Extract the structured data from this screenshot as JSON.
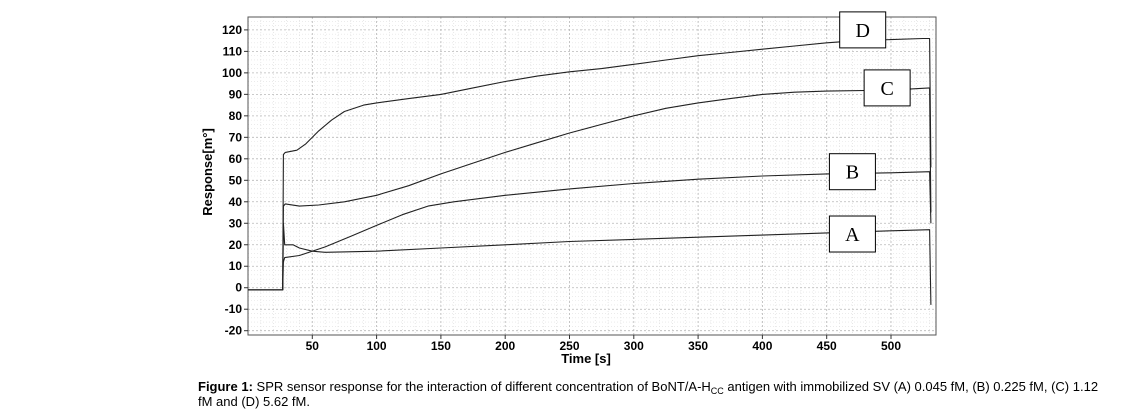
{
  "chart_data": {
    "type": "line",
    "xlabel": "Time [s]",
    "ylabel": "Response[m°]",
    "xlim": [
      0,
      535
    ],
    "ylim": [
      -22,
      126
    ],
    "x_ticks": [
      50,
      100,
      150,
      200,
      250,
      300,
      350,
      400,
      450,
      500
    ],
    "y_ticks": [
      -20,
      -10,
      0,
      10,
      20,
      30,
      40,
      50,
      60,
      70,
      80,
      90,
      100,
      110,
      120
    ],
    "grid": true,
    "series": [
      {
        "name": "A",
        "points": [
          [
            0,
            -1
          ],
          [
            27,
            -1
          ],
          [
            27.5,
            30
          ],
          [
            28.5,
            20
          ],
          [
            35,
            20
          ],
          [
            40,
            18.5
          ],
          [
            50,
            17
          ],
          [
            60,
            16.5
          ],
          [
            100,
            17
          ],
          [
            150,
            18.5
          ],
          [
            200,
            20
          ],
          [
            250,
            21.5
          ],
          [
            300,
            22.5
          ],
          [
            350,
            23.5
          ],
          [
            400,
            24.5
          ],
          [
            450,
            25.5
          ],
          [
            500,
            26.5
          ],
          [
            530,
            27
          ],
          [
            531,
            -8
          ]
        ]
      },
      {
        "name": "B",
        "points": [
          [
            0,
            -1
          ],
          [
            27,
            -1
          ],
          [
            27.5,
            12
          ],
          [
            28.5,
            14
          ],
          [
            40,
            15
          ],
          [
            60,
            19
          ],
          [
            80,
            24
          ],
          [
            100,
            29
          ],
          [
            120,
            34
          ],
          [
            140,
            38
          ],
          [
            160,
            40
          ],
          [
            200,
            43
          ],
          [
            250,
            46
          ],
          [
            300,
            48.5
          ],
          [
            350,
            50.5
          ],
          [
            400,
            52
          ],
          [
            450,
            53
          ],
          [
            500,
            53.5
          ],
          [
            530,
            54
          ],
          [
            531,
            30
          ]
        ]
      },
      {
        "name": "C",
        "points": [
          [
            0,
            -1
          ],
          [
            27,
            -1
          ],
          [
            27.5,
            38
          ],
          [
            29,
            39
          ],
          [
            40,
            38
          ],
          [
            55,
            38.5
          ],
          [
            75,
            40
          ],
          [
            100,
            43
          ],
          [
            125,
            47.5
          ],
          [
            150,
            53
          ],
          [
            175,
            58
          ],
          [
            200,
            63
          ],
          [
            225,
            67.5
          ],
          [
            250,
            72
          ],
          [
            275,
            76
          ],
          [
            300,
            80
          ],
          [
            325,
            83.5
          ],
          [
            350,
            86
          ],
          [
            375,
            88
          ],
          [
            400,
            90
          ],
          [
            425,
            91
          ],
          [
            450,
            91.5
          ],
          [
            500,
            92
          ],
          [
            530,
            93
          ],
          [
            531,
            35
          ]
        ]
      },
      {
        "name": "D",
        "points": [
          [
            0,
            -1
          ],
          [
            27,
            -1
          ],
          [
            27.5,
            62
          ],
          [
            29,
            63
          ],
          [
            38,
            64
          ],
          [
            45,
            67
          ],
          [
            55,
            73
          ],
          [
            65,
            78
          ],
          [
            75,
            82
          ],
          [
            90,
            85
          ],
          [
            100,
            86
          ],
          [
            125,
            88
          ],
          [
            150,
            90
          ],
          [
            175,
            93
          ],
          [
            200,
            96
          ],
          [
            225,
            98.5
          ],
          [
            250,
            100.5
          ],
          [
            275,
            102
          ],
          [
            300,
            104
          ],
          [
            325,
            106
          ],
          [
            350,
            108
          ],
          [
            375,
            109.5
          ],
          [
            400,
            111
          ],
          [
            425,
            112.5
          ],
          [
            450,
            114
          ],
          [
            475,
            115
          ],
          [
            500,
            115.5
          ],
          [
            525,
            116
          ],
          [
            530,
            116
          ],
          [
            531,
            56
          ]
        ]
      }
    ]
  },
  "series_labels": [
    "A",
    "B",
    "C",
    "D"
  ],
  "caption": {
    "label": "Figure 1:",
    "text_before": " SPR sensor response for the interaction of different concentration of BoNT/A-H",
    "subscript": "CC",
    "text_after": " antigen with immobilized SV (A) 0.045 fM, (B) 0.225 fM, (C) 1.12 fM and (D) 5.62 fM."
  }
}
